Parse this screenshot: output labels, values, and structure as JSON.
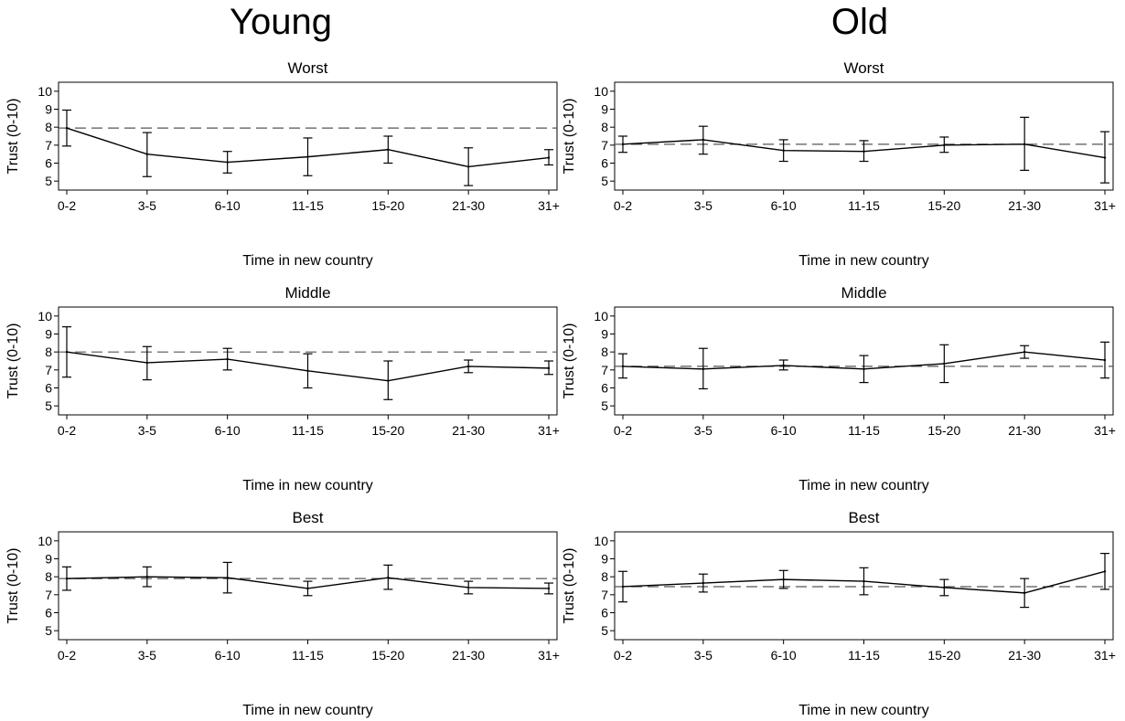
{
  "columns": [
    {
      "title": "Young"
    },
    {
      "title": "Old"
    }
  ],
  "chart_data": [
    {
      "type": "line",
      "group": "Young",
      "title": "Worst",
      "xlabel": "Time in new country",
      "ylabel": "Trust (0-10)",
      "categories": [
        "0-2",
        "3-5",
        "6-10",
        "11-15",
        "15-20",
        "21-30",
        "31+"
      ],
      "ylim": [
        4.5,
        10.5
      ],
      "yticks": [
        5,
        6,
        7,
        8,
        9,
        10
      ],
      "values": [
        7.95,
        6.5,
        6.05,
        6.35,
        6.75,
        5.8,
        6.3
      ],
      "lower": [
        6.95,
        5.25,
        5.45,
        5.3,
        6.0,
        4.75,
        5.9
      ],
      "upper": [
        8.95,
        7.7,
        6.65,
        7.4,
        7.5,
        6.85,
        6.75
      ],
      "reference": 7.95,
      "grid": false
    },
    {
      "type": "line",
      "group": "Old",
      "title": "Worst",
      "xlabel": "Time in new country",
      "ylabel": "Trust (0-10)",
      "categories": [
        "0-2",
        "3-5",
        "6-10",
        "11-15",
        "15-20",
        "21-30",
        "31+"
      ],
      "ylim": [
        4.5,
        10.5
      ],
      "yticks": [
        5,
        6,
        7,
        8,
        9,
        10
      ],
      "values": [
        7.05,
        7.3,
        6.7,
        6.65,
        7.0,
        7.05,
        6.3
      ],
      "lower": [
        6.6,
        6.5,
        6.1,
        6.1,
        6.6,
        5.6,
        4.9
      ],
      "upper": [
        7.5,
        8.05,
        7.3,
        7.25,
        7.45,
        8.55,
        7.75
      ],
      "reference": 7.05,
      "grid": false
    },
    {
      "type": "line",
      "group": "Young",
      "title": "Middle",
      "xlabel": "Time in new country",
      "ylabel": "Trust (0-10)",
      "categories": [
        "0-2",
        "3-5",
        "6-10",
        "11-15",
        "15-20",
        "21-30",
        "31+"
      ],
      "ylim": [
        4.5,
        10.5
      ],
      "yticks": [
        5,
        6,
        7,
        8,
        9,
        10
      ],
      "values": [
        8.0,
        7.4,
        7.6,
        6.95,
        6.4,
        7.2,
        7.1
      ],
      "lower": [
        6.6,
        6.45,
        7.0,
        6.0,
        5.35,
        6.85,
        6.75
      ],
      "upper": [
        9.4,
        8.3,
        8.2,
        7.9,
        7.5,
        7.55,
        7.5
      ],
      "reference": 8.0,
      "grid": false
    },
    {
      "type": "line",
      "group": "Old",
      "title": "Middle",
      "xlabel": "Time in new country",
      "ylabel": "Trust (0-10)",
      "categories": [
        "0-2",
        "3-5",
        "6-10",
        "11-15",
        "15-20",
        "21-30",
        "31+"
      ],
      "ylim": [
        4.5,
        10.5
      ],
      "yticks": [
        5,
        6,
        7,
        8,
        9,
        10
      ],
      "values": [
        7.2,
        7.05,
        7.25,
        7.05,
        7.35,
        8.0,
        7.55
      ],
      "lower": [
        6.55,
        5.95,
        7.0,
        6.3,
        6.3,
        7.65,
        6.55
      ],
      "upper": [
        7.9,
        8.2,
        7.55,
        7.8,
        8.4,
        8.35,
        8.55
      ],
      "reference": 7.2,
      "grid": false
    },
    {
      "type": "line",
      "group": "Young",
      "title": "Best",
      "xlabel": "Time in new country",
      "ylabel": "Trust (0-10)",
      "categories": [
        "0-2",
        "3-5",
        "6-10",
        "11-15",
        "15-20",
        "21-30",
        "31+"
      ],
      "ylim": [
        4.5,
        10.5
      ],
      "yticks": [
        5,
        6,
        7,
        8,
        9,
        10
      ],
      "values": [
        7.9,
        8.0,
        7.95,
        7.35,
        7.95,
        7.4,
        7.35
      ],
      "lower": [
        7.25,
        7.45,
        7.1,
        6.95,
        7.3,
        7.05,
        7.05
      ],
      "upper": [
        8.55,
        8.55,
        8.8,
        7.75,
        8.65,
        7.75,
        7.65
      ],
      "reference": 7.9,
      "grid": false
    },
    {
      "type": "line",
      "group": "Old",
      "title": "Best",
      "xlabel": "Time in new country",
      "ylabel": "Trust (0-10)",
      "categories": [
        "0-2",
        "3-5",
        "6-10",
        "11-15",
        "15-20",
        "21-30",
        "31+"
      ],
      "ylim": [
        4.5,
        10.5
      ],
      "yticks": [
        5,
        6,
        7,
        8,
        9,
        10
      ],
      "values": [
        7.45,
        7.65,
        7.85,
        7.75,
        7.4,
        7.1,
        8.3
      ],
      "lower": [
        6.6,
        7.15,
        7.35,
        7.0,
        6.95,
        6.3,
        7.3
      ],
      "upper": [
        8.3,
        8.15,
        8.35,
        8.5,
        7.85,
        7.9,
        9.3
      ],
      "reference": 7.45,
      "grid": false
    }
  ]
}
